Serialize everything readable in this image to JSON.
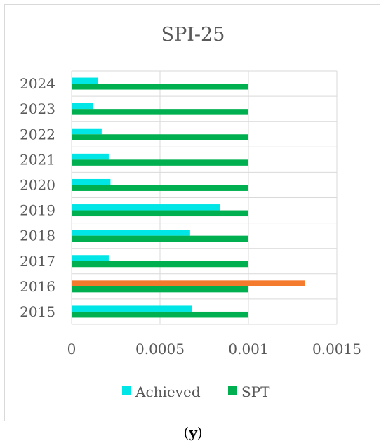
{
  "caption": {
    "open": "(",
    "letter": "y",
    "close": ")"
  },
  "colors": {
    "achieved": "#00E5E5",
    "achieved_highlight": "#F47A2E",
    "spt": "#00B050",
    "grid": "#d9d9d9",
    "text": "#595959"
  },
  "chart_data": {
    "type": "bar",
    "orientation": "horizontal",
    "title": "SPI-25",
    "categories": [
      "2015",
      "2016",
      "2017",
      "2018",
      "2019",
      "2020",
      "2021",
      "2022",
      "2023",
      "2024"
    ],
    "series": [
      {
        "name": "Achieved",
        "values": [
          0.00068,
          0.00132,
          0.00021,
          0.00067,
          0.00084,
          0.00022,
          0.00021,
          0.00017,
          0.00012,
          0.00015
        ]
      },
      {
        "name": "SPT",
        "values": [
          0.001,
          0.001,
          0.001,
          0.001,
          0.001,
          0.001,
          0.001,
          0.001,
          0.001,
          0.001
        ]
      }
    ],
    "highlight": {
      "series": "Achieved",
      "category": "2016",
      "color": "#F47A2E"
    },
    "xlim": [
      0,
      0.0015
    ],
    "xticks": [
      "0",
      "0.0005",
      "0.001",
      "0.0015"
    ],
    "xtick_values": [
      0,
      0.0005,
      0.001,
      0.0015
    ],
    "grid": true,
    "legend_position": "bottom"
  }
}
